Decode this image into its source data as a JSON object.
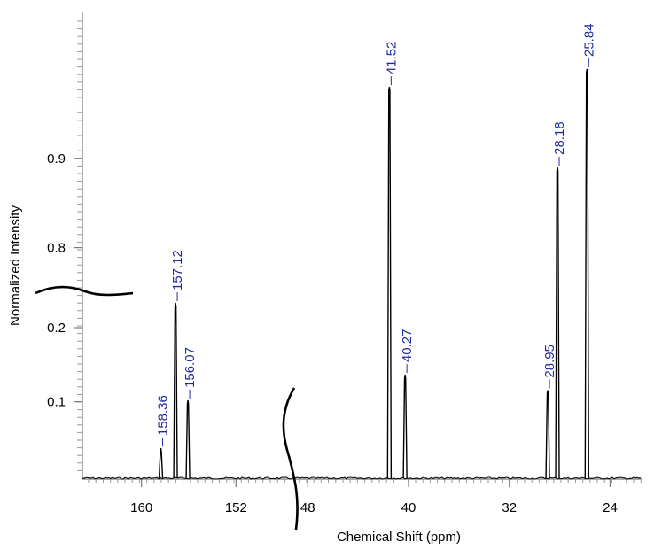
{
  "chart_data": {
    "type": "line",
    "title": "",
    "xlabel": "Chemical Shift (ppm)",
    "ylabel": "Normalized Intensity",
    "x_reversed": true,
    "broken_axes": true,
    "x_segments": [
      {
        "range": [
          165,
          147
        ],
        "ticks": [
          160,
          152
        ]
      },
      {
        "range": [
          49,
          21.5
        ],
        "ticks": [
          48,
          40,
          32,
          24
        ]
      }
    ],
    "x_tick_labels": [
      "160",
      "152",
      "48",
      "40",
      "32",
      "24"
    ],
    "y_segments": [
      {
        "range": [
          0,
          0.15
        ],
        "ticks": [
          0.1
        ]
      },
      {
        "range": [
          0.15,
          0.25
        ],
        "ticks": [
          0.2
        ]
      },
      {
        "range": [
          0.75,
          1.0
        ],
        "ticks": [
          0.8,
          0.9
        ]
      }
    ],
    "y_tick_labels": [
      "0.1",
      "0.2",
      "0.8",
      "0.9"
    ],
    "peaks": [
      {
        "x": 158.36,
        "y": 0.04,
        "label": "158.36"
      },
      {
        "x": 157.12,
        "y": 0.235,
        "label": "157.12"
      },
      {
        "x": 156.07,
        "y": 0.102,
        "label": "156.07"
      },
      {
        "x": 41.52,
        "y": 0.98,
        "label": "41.52"
      },
      {
        "x": 40.27,
        "y": 0.135,
        "label": "40.27"
      },
      {
        "x": 28.95,
        "y": 0.115,
        "label": "28.95"
      },
      {
        "x": 28.18,
        "y": 0.89,
        "label": "28.18"
      },
      {
        "x": 25.84,
        "y": 1.0,
        "label": "25.84"
      }
    ],
    "grid": false,
    "legend": "none",
    "line_color": "#000000",
    "label_color": "#1f2a9e"
  }
}
